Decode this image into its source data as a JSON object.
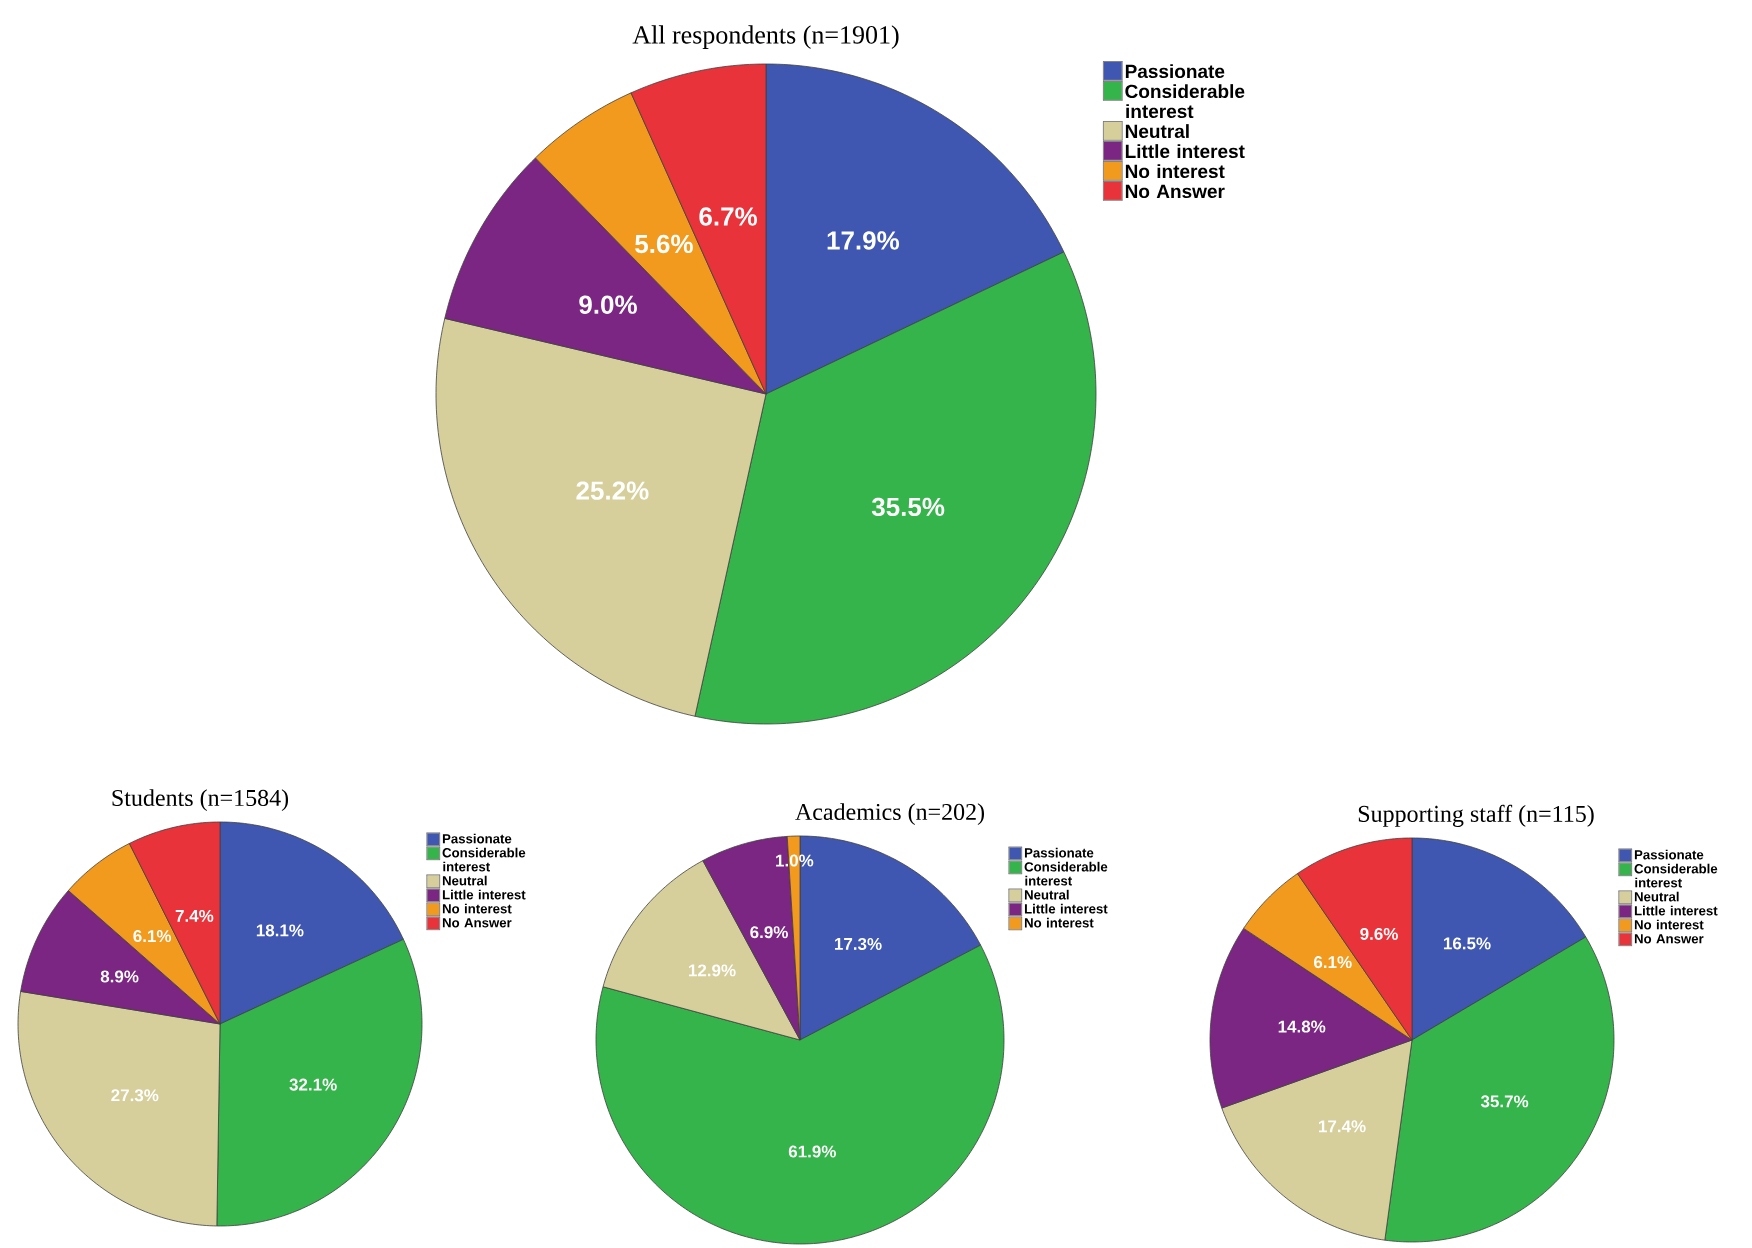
{
  "chart_data": [
    {
      "type": "pie",
      "title": "All respondents (n=1901)",
      "categories": [
        "Passionate",
        "Considerable interest",
        "Neutral",
        "Little interest",
        "No interest",
        "No Answer"
      ],
      "values": [
        17.9,
        35.5,
        25.2,
        9.0,
        5.6,
        6.7
      ],
      "value_labels": [
        "17.9%",
        "35.5%",
        "25.2%",
        "9.0%",
        "5.6%",
        "6.7%"
      ],
      "colors": [
        "#3f57b0",
        "#34b44a",
        "#d6cf9b",
        "#7b2682",
        "#f29a1e",
        "#e8333a"
      ],
      "legend": "top right"
    },
    {
      "type": "pie",
      "title": "Students (n=1584)",
      "categories": [
        "Passionate",
        "Considerable interest",
        "Neutral",
        "Little interest",
        "No interest",
        "No Answer"
      ],
      "values": [
        18.1,
        32.1,
        27.3,
        8.9,
        6.1,
        7.4
      ],
      "value_labels": [
        "18.1%",
        "32.1%",
        "27.3%",
        "8.9%",
        "6.1%",
        "7.4%"
      ],
      "colors": [
        "#3f57b0",
        "#34b44a",
        "#d6cf9b",
        "#7b2682",
        "#f29a1e",
        "#e8333a"
      ],
      "legend": "top right"
    },
    {
      "type": "pie",
      "title": "Academics (n=202)",
      "categories": [
        "Passionate",
        "Considerable interest",
        "Neutral",
        "Little interest",
        "No interest"
      ],
      "values": [
        17.3,
        61.9,
        12.9,
        6.9,
        1.0
      ],
      "value_labels": [
        "17.3%",
        "61.9%",
        "12.9%",
        "6.9%",
        "1.0%"
      ],
      "colors": [
        "#3f57b0",
        "#34b44a",
        "#d6cf9b",
        "#7b2682",
        "#f29a1e"
      ],
      "legend": "top right"
    },
    {
      "type": "pie",
      "title": "Supporting staff (n=115)",
      "categories": [
        "Passionate",
        "Considerable interest",
        "Neutral",
        "Little interest",
        "No interest",
        "No Answer"
      ],
      "values": [
        16.5,
        35.7,
        17.4,
        14.8,
        6.1,
        9.6
      ],
      "value_labels": [
        "16.5%",
        "35.7%",
        "17.4%",
        "14.8%",
        "6.1%",
        "9.6%"
      ],
      "colors": [
        "#3f57b0",
        "#34b44a",
        "#d6cf9b",
        "#7b2682",
        "#f29a1e",
        "#e8333a"
      ],
      "legend": "top right"
    }
  ]
}
